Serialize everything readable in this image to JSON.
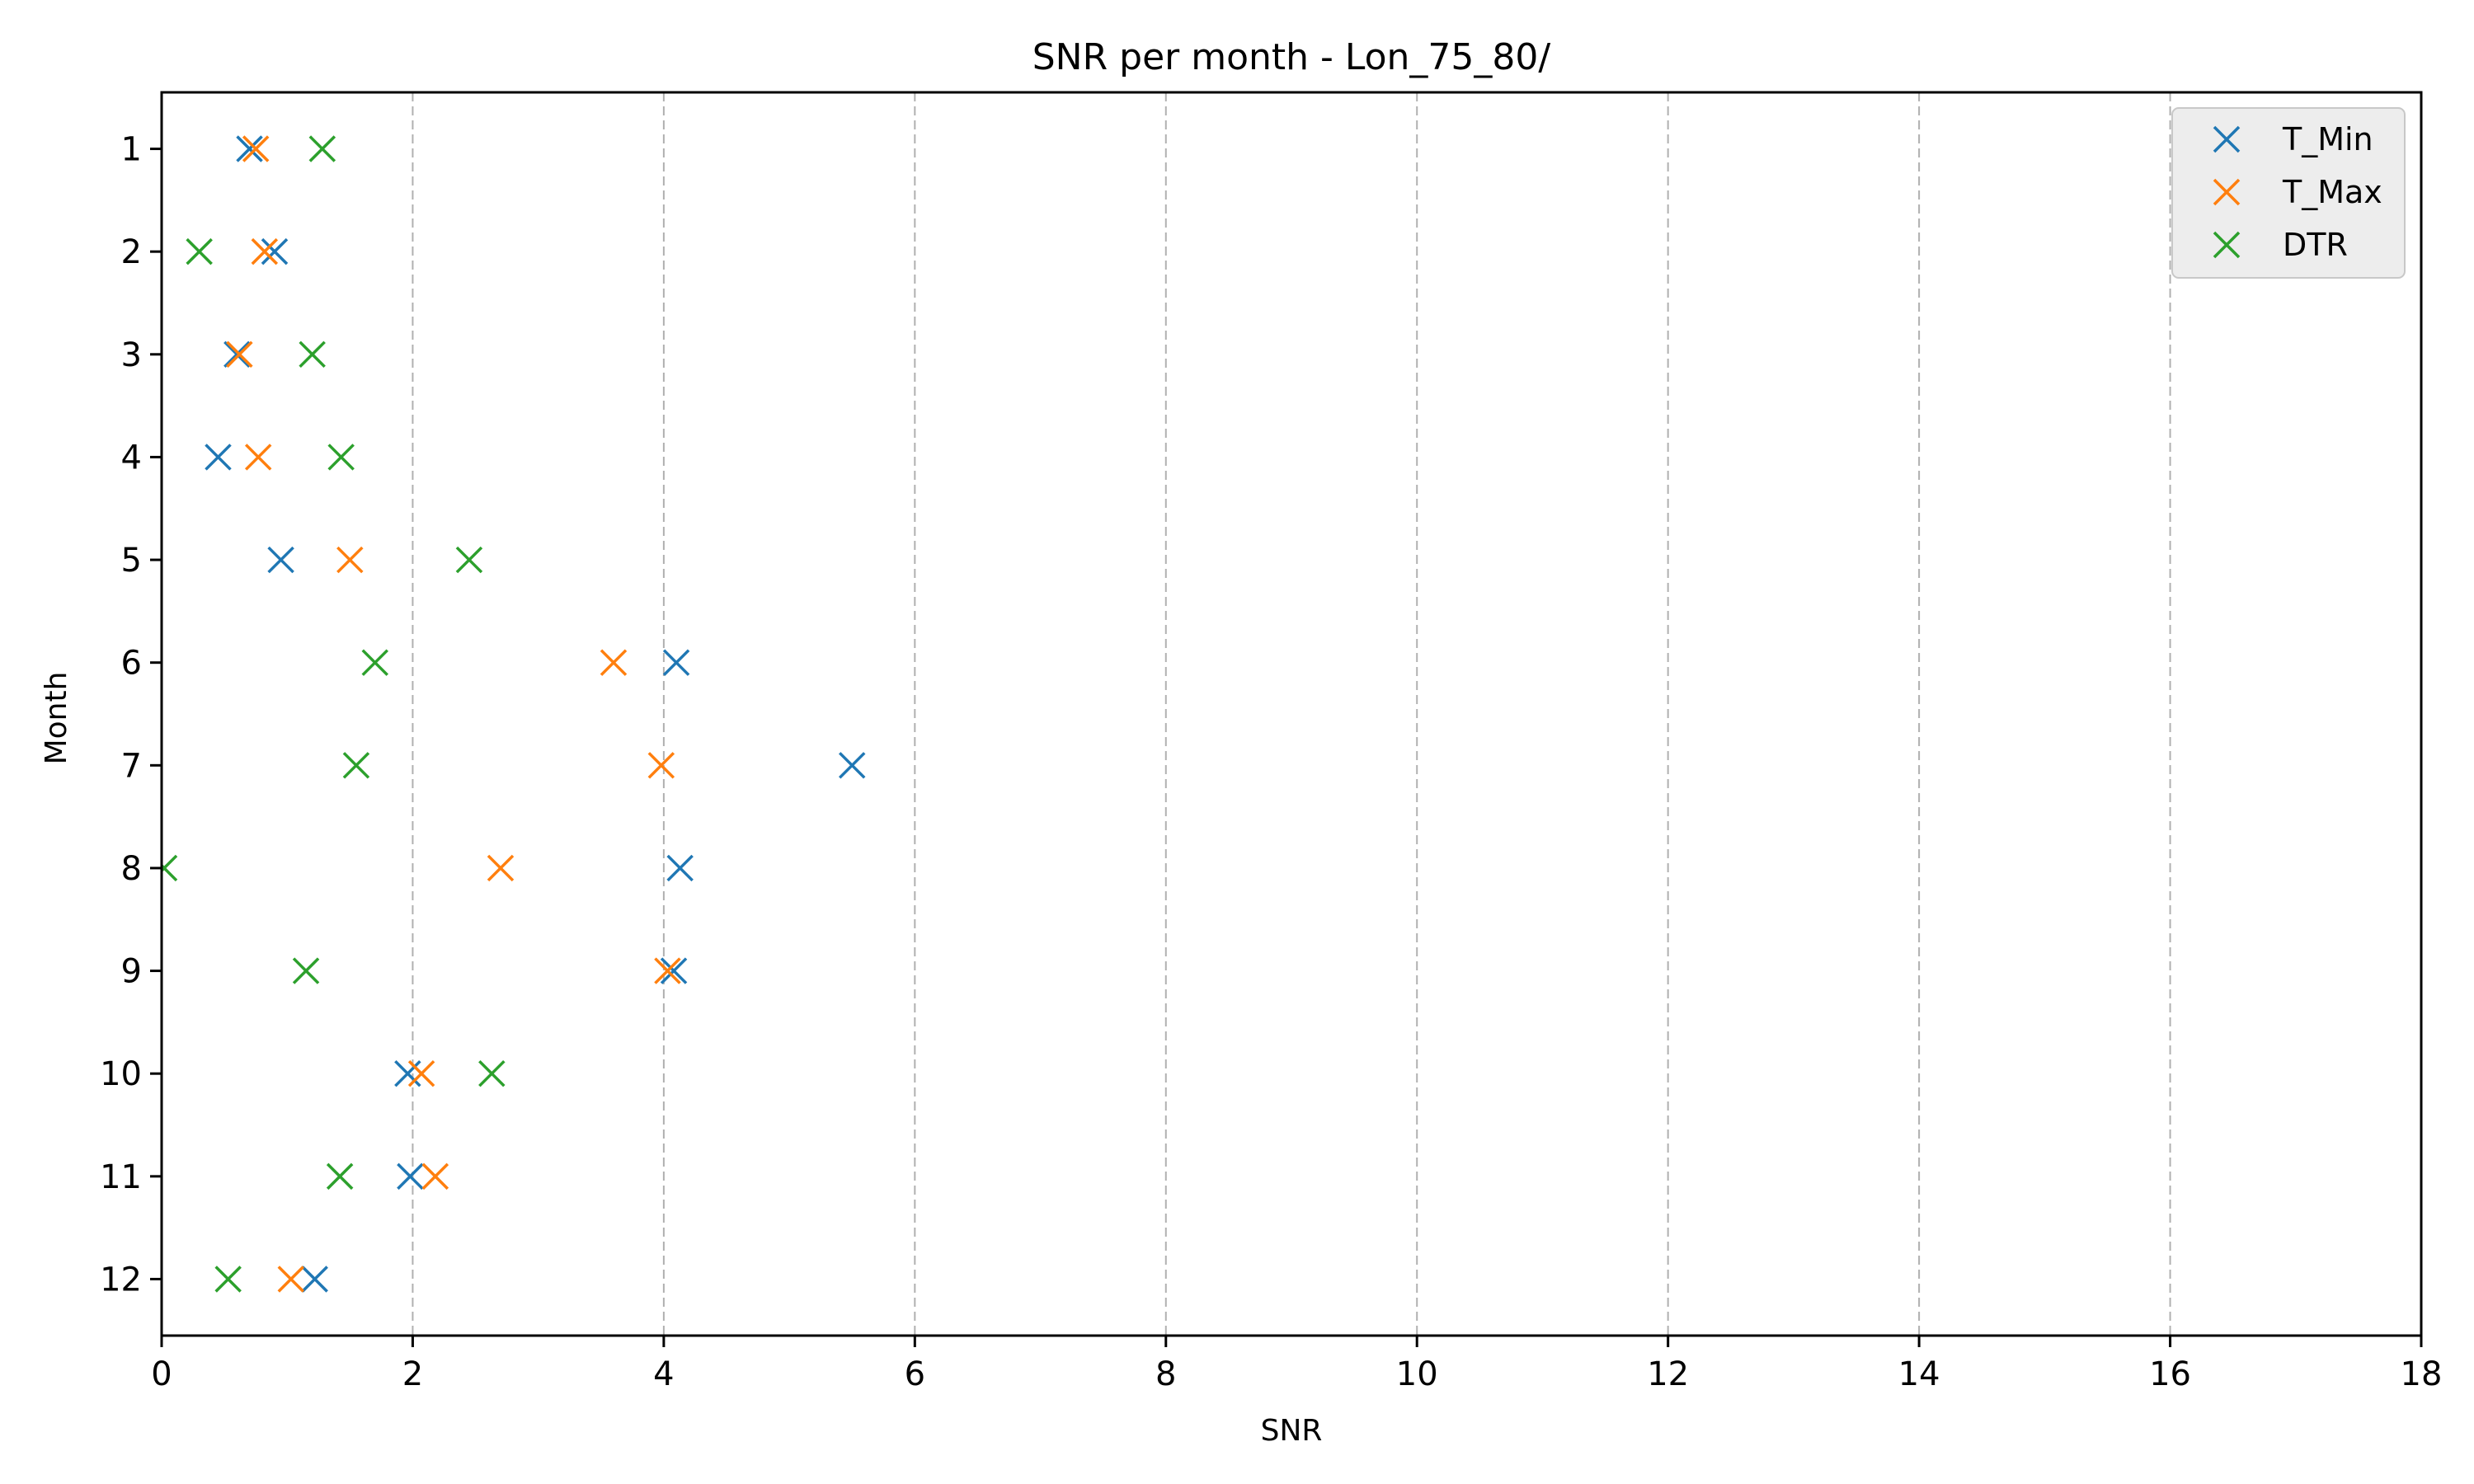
{
  "chart_data": {
    "type": "scatter",
    "title": "SNR per month - Lon_75_80/",
    "xlabel": "SNR",
    "ylabel": "Month",
    "xlim": [
      0,
      18
    ],
    "xticks": [
      0,
      2,
      4,
      6,
      8,
      10,
      12,
      14,
      16,
      18
    ],
    "yticks": [
      1,
      2,
      3,
      4,
      5,
      6,
      7,
      8,
      9,
      10,
      11,
      12
    ],
    "y_inverted": true,
    "grid": "x-dashed",
    "legend_position": "top-right",
    "marker": "x",
    "series": [
      {
        "name": "T_Min",
        "color": "#1f77b4",
        "points": [
          {
            "x": 0.7,
            "y": 1
          },
          {
            "x": 0.9,
            "y": 2
          },
          {
            "x": 0.6,
            "y": 3
          },
          {
            "x": 0.45,
            "y": 4
          },
          {
            "x": 0.95,
            "y": 5
          },
          {
            "x": 4.1,
            "y": 6
          },
          {
            "x": 5.5,
            "y": 7
          },
          {
            "x": 4.13,
            "y": 8
          },
          {
            "x": 4.08,
            "y": 9
          },
          {
            "x": 1.96,
            "y": 10
          },
          {
            "x": 1.98,
            "y": 11
          },
          {
            "x": 1.22,
            "y": 12
          }
        ]
      },
      {
        "name": "T_Max",
        "color": "#ff7f0e",
        "points": [
          {
            "x": 0.75,
            "y": 1
          },
          {
            "x": 0.82,
            "y": 2
          },
          {
            "x": 0.62,
            "y": 3
          },
          {
            "x": 0.77,
            "y": 4
          },
          {
            "x": 1.5,
            "y": 5
          },
          {
            "x": 3.6,
            "y": 6
          },
          {
            "x": 3.98,
            "y": 7
          },
          {
            "x": 2.7,
            "y": 8
          },
          {
            "x": 4.03,
            "y": 9
          },
          {
            "x": 2.07,
            "y": 10
          },
          {
            "x": 2.18,
            "y": 11
          },
          {
            "x": 1.03,
            "y": 12
          }
        ]
      },
      {
        "name": "DTR",
        "color": "#2ca02c",
        "points": [
          {
            "x": 1.28,
            "y": 1
          },
          {
            "x": 0.3,
            "y": 2
          },
          {
            "x": 1.2,
            "y": 3
          },
          {
            "x": 1.43,
            "y": 4
          },
          {
            "x": 2.45,
            "y": 5
          },
          {
            "x": 1.7,
            "y": 6
          },
          {
            "x": 1.55,
            "y": 7
          },
          {
            "x": 0.02,
            "y": 8
          },
          {
            "x": 1.15,
            "y": 9
          },
          {
            "x": 2.63,
            "y": 10
          },
          {
            "x": 1.42,
            "y": 11
          },
          {
            "x": 0.53,
            "y": 12
          }
        ]
      }
    ]
  }
}
